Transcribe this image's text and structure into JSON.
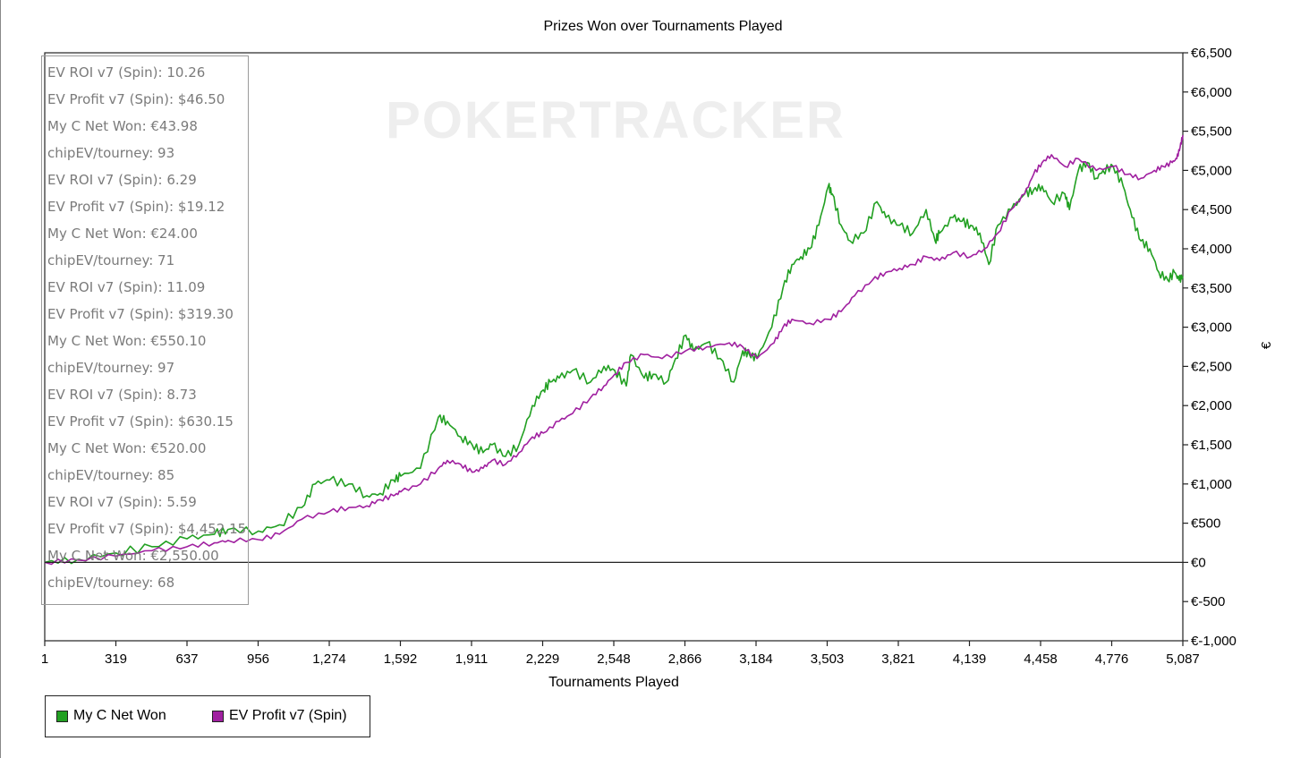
{
  "chart_data": {
    "type": "line",
    "title": "Prizes Won over Tournaments Played",
    "xlabel": "Tournaments Played",
    "ylabel": "€",
    "xlim": [
      1,
      5087
    ],
    "ylim": [
      -1000,
      6500
    ],
    "x_ticks": [
      "1",
      "319",
      "637",
      "956",
      "1,274",
      "1,592",
      "1,911",
      "2,229",
      "2,548",
      "2,866",
      "3,184",
      "3,503",
      "3,821",
      "4,139",
      "4,458",
      "4,776",
      "5,087"
    ],
    "y_ticks": [
      "€6,500",
      "€6,000",
      "€5,500",
      "€5,000",
      "€4,500",
      "€4,000",
      "€3,500",
      "€3,000",
      "€2,500",
      "€2,000",
      "€1,500",
      "€1,000",
      "€500",
      "€0",
      "€-500",
      "€-1,000"
    ],
    "legend_position": "bottom-left",
    "series": [
      {
        "name": "My C Net Won",
        "color": "#22a022",
        "x": [
          1,
          150,
          319,
          480,
          637,
          760,
          820,
          956,
          1050,
          1150,
          1210,
          1274,
          1360,
          1440,
          1500,
          1560,
          1592,
          1680,
          1760,
          1800,
          1860,
          1911,
          1960,
          2000,
          2060,
          2120,
          2180,
          2229,
          2260,
          2300,
          2360,
          2440,
          2500,
          2548,
          2600,
          2620,
          2680,
          2720,
          2780,
          2820,
          2866,
          2900,
          2960,
          3020,
          3080,
          3120,
          3150,
          3184,
          3250,
          3300,
          3340,
          3380,
          3420,
          3460,
          3503,
          3520,
          3560,
          3600,
          3660,
          3720,
          3760,
          3821,
          3880,
          3940,
          3980,
          4000,
          4060,
          4100,
          4139,
          4180,
          4220,
          4260,
          4320,
          4380,
          4420,
          4458,
          4500,
          4560,
          4580,
          4620,
          4660,
          4700,
          4730,
          4776,
          4820,
          4860,
          4900,
          4940,
          4980,
          5020,
          5050,
          5070,
          5087
        ],
        "values": [
          0,
          40,
          120,
          200,
          300,
          360,
          420,
          400,
          480,
          700,
          1000,
          1050,
          1000,
          850,
          880,
          1050,
          1100,
          1200,
          1850,
          1800,
          1600,
          1500,
          1400,
          1500,
          1350,
          1500,
          2000,
          2200,
          2300,
          2350,
          2450,
          2300,
          2500,
          2450,
          2250,
          2650,
          2350,
          2400,
          2300,
          2600,
          2900,
          2700,
          2800,
          2600,
          2300,
          2700,
          2650,
          2600,
          3000,
          3500,
          3800,
          3900,
          4000,
          4300,
          4800,
          4700,
          4300,
          4100,
          4200,
          4600,
          4400,
          4300,
          4200,
          4500,
          4100,
          4200,
          4400,
          4350,
          4300,
          4200,
          3800,
          4300,
          4500,
          4700,
          4750,
          4800,
          4600,
          4700,
          4500,
          5000,
          5100,
          4900,
          5000,
          5050,
          4800,
          4400,
          4100,
          4000,
          3700,
          3600,
          3700,
          3600,
          3650
        ]
      },
      {
        "name": "EV Profit v7 (Spin)",
        "color": "#a020a0",
        "x": [
          1,
          150,
          319,
          480,
          637,
          760,
          820,
          956,
          1050,
          1150,
          1274,
          1360,
          1440,
          1500,
          1560,
          1592,
          1680,
          1760,
          1800,
          1860,
          1911,
          1960,
          2000,
          2060,
          2120,
          2180,
          2229,
          2300,
          2360,
          2440,
          2500,
          2548,
          2600,
          2680,
          2760,
          2866,
          2960,
          3060,
          3120,
          3184,
          3260,
          3300,
          3340,
          3420,
          3503,
          3560,
          3620,
          3700,
          3760,
          3821,
          3880,
          3940,
          4000,
          4060,
          4139,
          4200,
          4260,
          4320,
          4380,
          4420,
          4458,
          4500,
          4560,
          4620,
          4700,
          4776,
          4840,
          4900,
          4960,
          5000,
          5040,
          5060,
          5075,
          5087
        ],
        "values": [
          0,
          30,
          80,
          150,
          200,
          250,
          280,
          290,
          360,
          550,
          650,
          700,
          720,
          800,
          850,
          900,
          1000,
          1200,
          1300,
          1250,
          1150,
          1200,
          1300,
          1250,
          1400,
          1600,
          1650,
          1800,
          1900,
          2100,
          2250,
          2400,
          2550,
          2650,
          2600,
          2700,
          2750,
          2800,
          2750,
          2600,
          2800,
          3000,
          3100,
          3050,
          3100,
          3200,
          3400,
          3600,
          3700,
          3750,
          3800,
          3900,
          3850,
          3950,
          3900,
          4000,
          4200,
          4500,
          4700,
          4950,
          5100,
          5200,
          5050,
          5150,
          5000,
          5050,
          4950,
          4900,
          5000,
          5050,
          5100,
          5150,
          5300,
          5450
        ]
      }
    ]
  },
  "stats_box": {
    "lines": [
      "EV ROI v7 (Spin): 10.26",
      "EV Profit v7 (Spin): $46.50",
      "My C Net Won: €43.98",
      "chipEV/tourney: 93",
      "EV ROI v7 (Spin): 6.29",
      "EV Profit v7 (Spin): $19.12",
      "My C Net Won: €24.00",
      "chipEV/tourney: 71",
      "EV ROI v7 (Spin): 11.09",
      "EV Profit v7 (Spin): $319.30",
      "My C Net Won: €550.10",
      "chipEV/tourney: 97",
      "EV ROI v7 (Spin): 8.73",
      "EV Profit v7 (Spin): $630.15",
      "My C Net Won: €520.00",
      "chipEV/tourney: 85",
      "EV ROI v7 (Spin): 5.59",
      "EV Profit v7 (Spin): $4,452.15",
      "My C Net Won: €2,550.00",
      "chipEV/tourney: 68"
    ]
  },
  "watermark": "POKERTRACKER"
}
